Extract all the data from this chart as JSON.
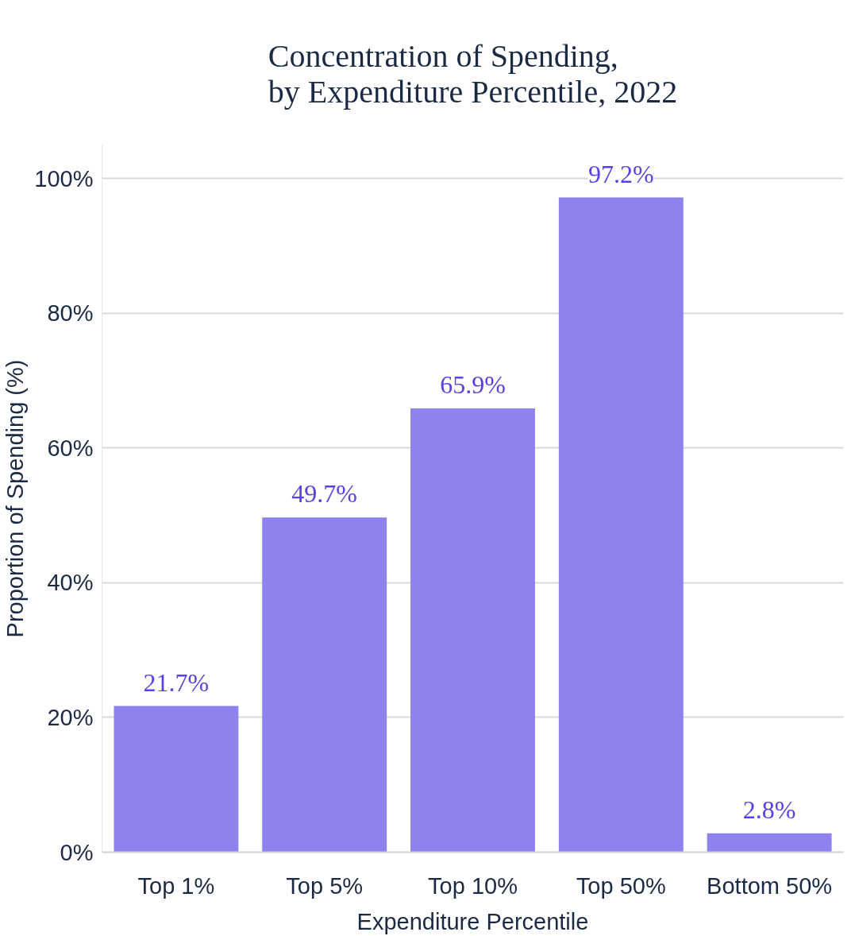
{
  "chart_data": {
    "type": "bar",
    "title": "Concentration of Spending,\nby Expenditure Percentile, 2022",
    "xlabel": "Expenditure Percentile",
    "ylabel": "Proportion of Spending (%)",
    "categories": [
      "Top 1%",
      "Top 5%",
      "Top 10%",
      "Top 50%",
      "Bottom 50%"
    ],
    "values": [
      21.7,
      49.7,
      65.9,
      97.2,
      2.8
    ],
    "value_labels": [
      "21.7%",
      "49.7%",
      "65.9%",
      "97.2%",
      "2.8%"
    ],
    "color": "#8f82ee",
    "ylim": [
      0,
      105
    ],
    "yticks": [
      {
        "value": 0,
        "label": "0%"
      },
      {
        "value": 20,
        "label": "20%"
      },
      {
        "value": 40,
        "label": "40%"
      },
      {
        "value": 60,
        "label": "60%"
      },
      {
        "value": 80,
        "label": "80%"
      },
      {
        "value": 100,
        "label": "100%"
      }
    ],
    "grid": "y"
  }
}
